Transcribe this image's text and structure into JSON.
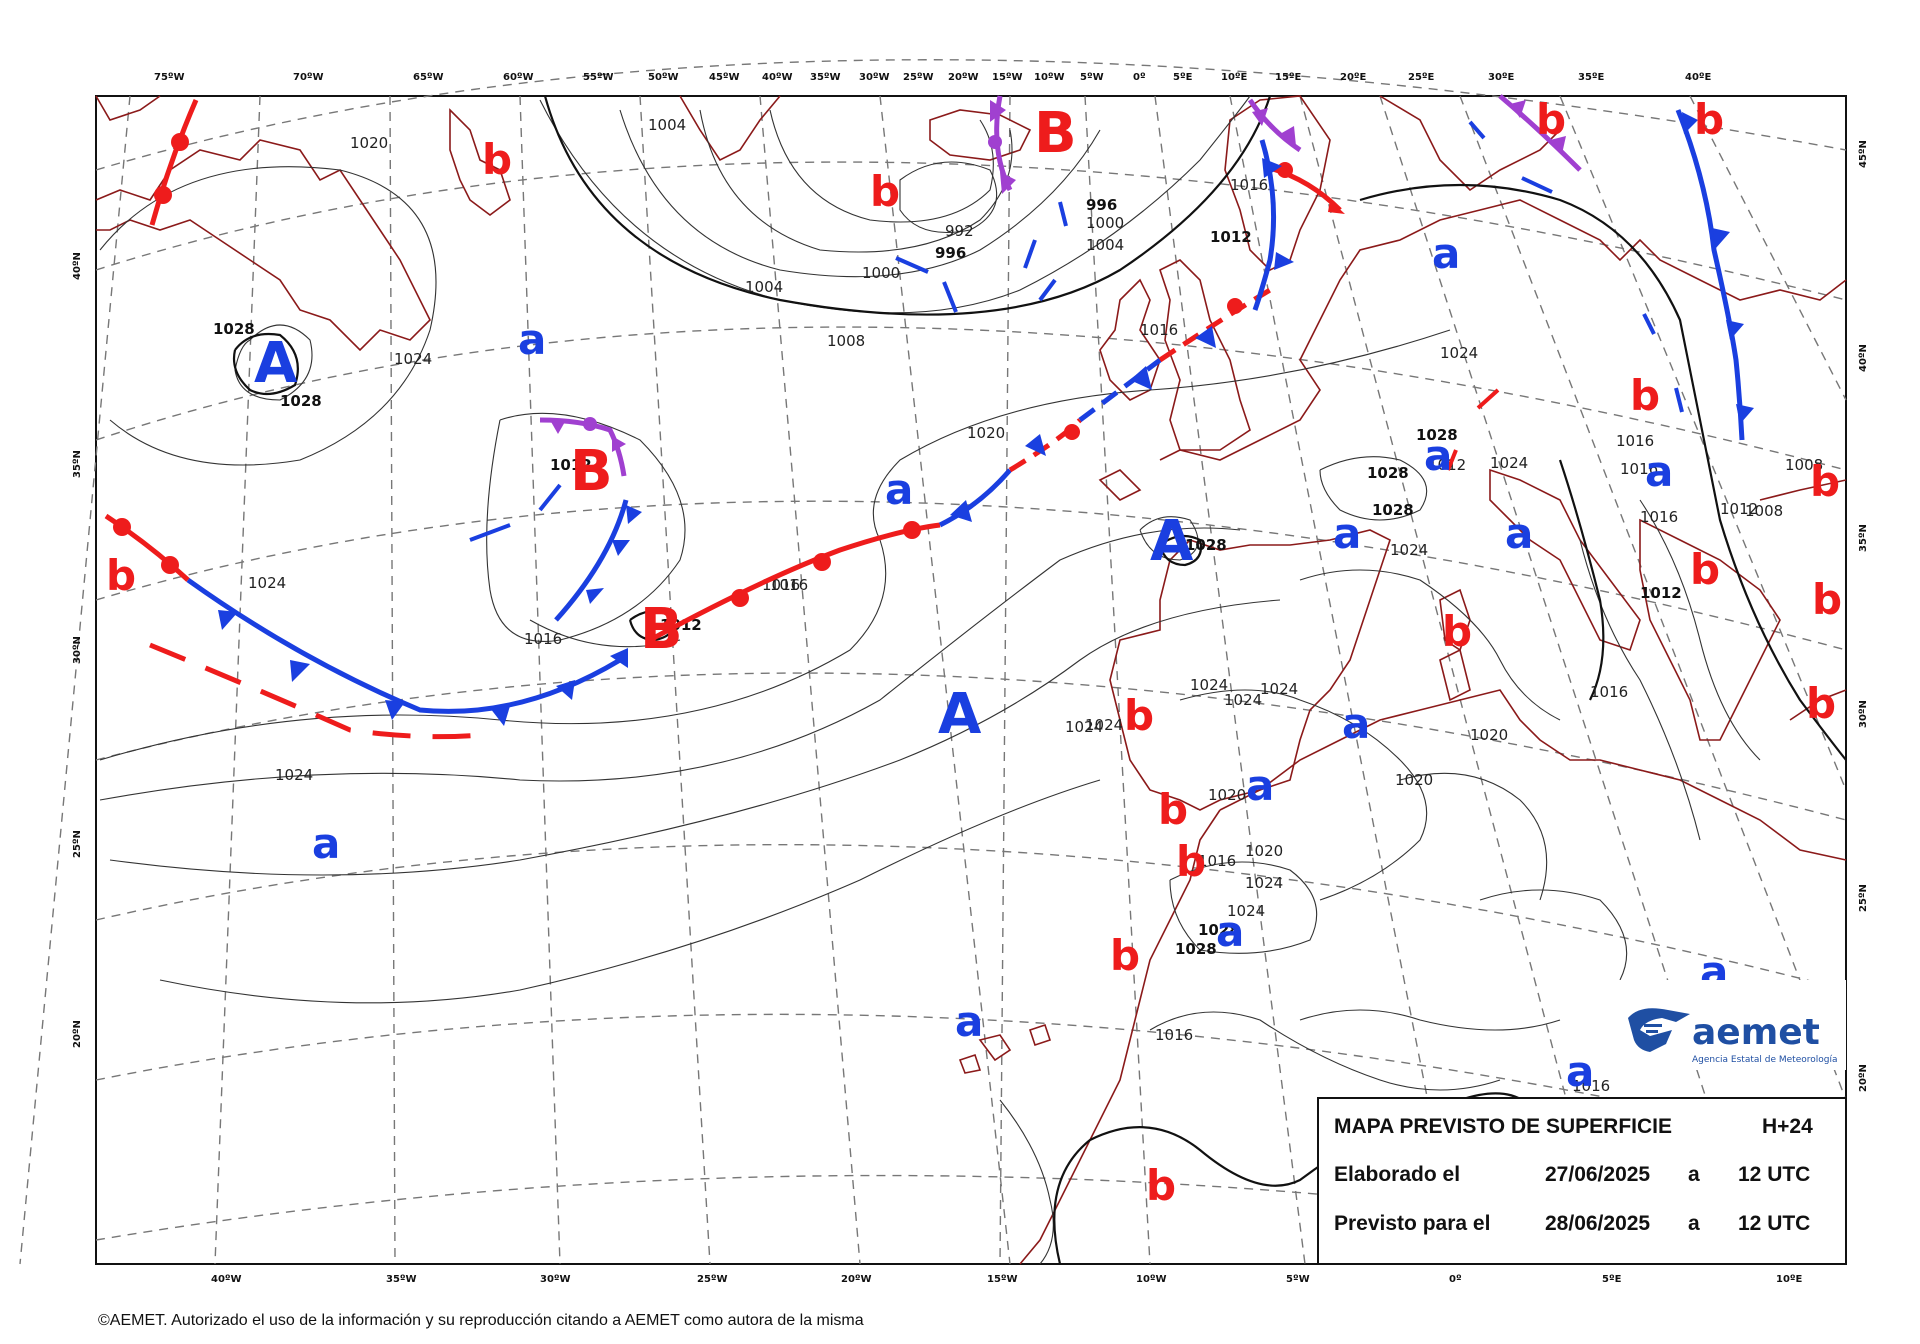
{
  "legend": {
    "title": "MAPA PREVISTO DE SUPERFICIE",
    "lead": "H+24",
    "row1_label": "Elaborado el",
    "row1_date": "27/06/2025",
    "row1_a": "a",
    "row1_time": "12 UTC",
    "row2_label": "Previsto para el",
    "row2_date": "28/06/2025",
    "row2_a": "a",
    "row2_time": "12 UTC"
  },
  "logo": {
    "name": "aemet",
    "subtitle": "Agencia Estatal de Meteorología"
  },
  "copyright": "©AEMET. Autorizado el uso de la información y su reproducción citando a AEMET como autora de la misma",
  "top_ticks": [
    "75ºW",
    "70ºW",
    "65ºW",
    "60ºW",
    "55ºW",
    "50ºW",
    "45ºW",
    "40ºW",
    "35ºW",
    "30ºW",
    "25ºW",
    "20ºW",
    "15ºW",
    "10ºW",
    "5ºW",
    "0º",
    "5ºE",
    "10ºE",
    "15ºE",
    "20ºE",
    "25ºE",
    "30ºE",
    "35ºE",
    "40ºE"
  ],
  "bottom_ticks": [
    "40ºW",
    "35ºW",
    "30ºW",
    "25ºW",
    "20ºW",
    "15ºW",
    "10ºW",
    "5ºW",
    "0º",
    "5ºE",
    "10ºE"
  ],
  "left_ticks": [
    "40ºN",
    "35ºN",
    "30ºN",
    "25ºN",
    "20ºN"
  ],
  "right_ticks": [
    "45ºN",
    "40ºN",
    "35ºN",
    "30ºN",
    "25ºN",
    "20ºN"
  ],
  "isobar_labels": [
    "1020",
    "1024",
    "1028",
    "1028",
    "1004",
    "1004",
    "1008",
    "1000",
    "996",
    "996",
    "992",
    "1000",
    "1004",
    "1012",
    "1016",
    "1020",
    "1016",
    "1024",
    "1028",
    "1024",
    "1012",
    "1016",
    "1016",
    "1024",
    "1024",
    "1024",
    "1024",
    "1024",
    "1020",
    "1020",
    "1020",
    "1016",
    "1024",
    "1024",
    "1028",
    "1028",
    "1016",
    "1016",
    "1016",
    "1016",
    "1016",
    "1012",
    "1012",
    "1012",
    "1008",
    "1008",
    "1024",
    "1028",
    "1028",
    "1028",
    "1012",
    "1016",
    "1016",
    "1020",
    "1024",
    "1024"
  ],
  "systems": [
    {
      "letter": "A",
      "kind": "high-big"
    },
    {
      "letter": "A",
      "kind": "high-big"
    },
    {
      "letter": "A",
      "kind": "high-big"
    },
    {
      "letter": "B",
      "kind": "low-big"
    },
    {
      "letter": "B",
      "kind": "low-big"
    },
    {
      "letter": "B",
      "kind": "low-big"
    },
    {
      "letter": "a",
      "kind": "high-small"
    },
    {
      "letter": "b",
      "kind": "low-small"
    }
  ],
  "colors": {
    "cold_front": "#1a3fe0",
    "warm_front": "#ee1c1c",
    "occluded_front": "#a040d0",
    "coast": "#8b1a1a",
    "high": "#1a3fe0",
    "low": "#ee1c1c",
    "grid": "#777777"
  },
  "icons": {
    "logo_mark": "aemet-logo-icon"
  }
}
